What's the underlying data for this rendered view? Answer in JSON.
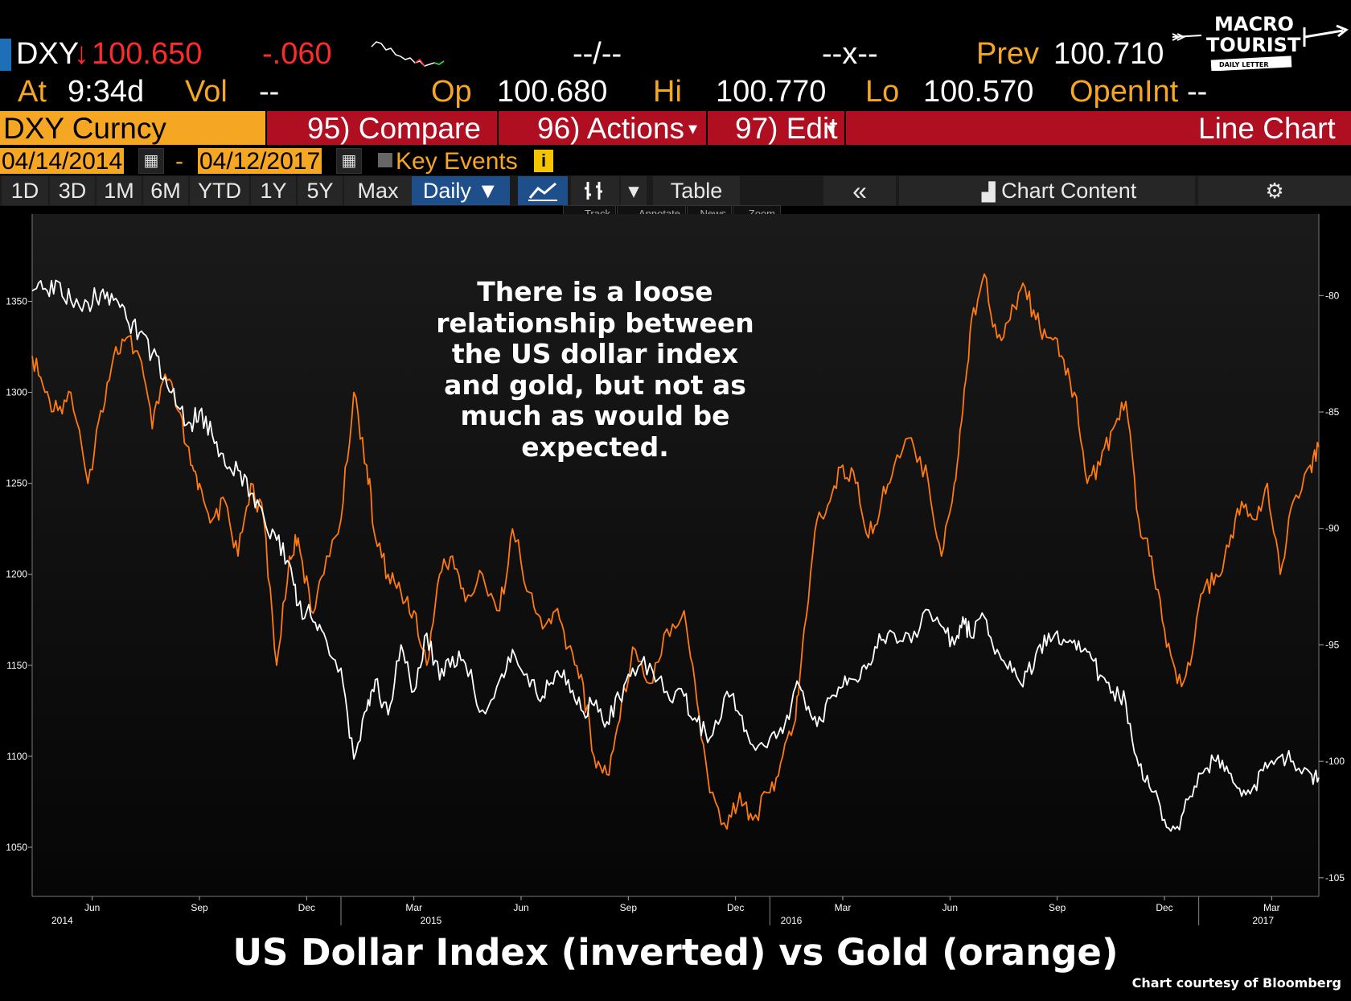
{
  "quote": {
    "ticker": "DXY",
    "direction_arrow": "↓",
    "last": "100.650",
    "change": "-.060",
    "bid_ask": "--/--",
    "size": "--x--",
    "prev_label": "Prev",
    "prev": "100.710",
    "at_label": "At",
    "time": "9:34d",
    "vol_label": "Vol",
    "vol": "--",
    "open_label": "Op",
    "open": "100.680",
    "high_label": "Hi",
    "high": "100.770",
    "low_label": "Lo",
    "low": "100.570",
    "openint_label": "OpenInt",
    "openint": "--"
  },
  "function_bar": {
    "security": "DXY Curncy",
    "compare": "95) Compare",
    "actions": "96) Actions",
    "edit": "97) Edit",
    "chart_type": "Line Chart"
  },
  "date_range": {
    "start": "04/14/2014",
    "dash": "-",
    "end": "04/12/2017",
    "key_events": "Key Events",
    "info_icon": "i"
  },
  "toolbar": {
    "periods": [
      "1D",
      "3D",
      "1M",
      "6M",
      "YTD",
      "1Y",
      "5Y",
      "Max"
    ],
    "frequency": "Daily ▼",
    "table": "Table",
    "collapse": "«",
    "chart_content": "Chart Content",
    "tools": [
      "Track",
      "Annotate",
      "News",
      "Zoom"
    ]
  },
  "logo": {
    "line1": "MACRO",
    "line2": "TOURIST",
    "line3": "DAILY LETTER"
  },
  "annotation": [
    "There is a loose",
    "relationship between",
    "the US dollar index",
    "and gold, but not as",
    "much as would be",
    "expected."
  ],
  "title": "US Dollar Index (inverted) vs Gold (orange)",
  "credit": "Chart courtesy of Bloomberg",
  "colors": {
    "gold": "#ff7a10",
    "dxy": "#ffffff",
    "amber": "#f5a623",
    "bar_red": "#b00f22"
  },
  "chart_data": {
    "type": "line",
    "title": "US Dollar Index (inverted) vs Gold (orange)",
    "x_axis": {
      "month_ticks": [
        "Jun",
        "Sep",
        "Dec",
        "Mar",
        "Jun",
        "Sep",
        "Dec",
        "Mar",
        "Jun",
        "Sep",
        "Dec",
        "Mar"
      ],
      "month_tick_pos": [
        2014.42,
        2014.67,
        2014.92,
        2015.17,
        2015.42,
        2015.67,
        2015.92,
        2016.17,
        2016.42,
        2016.67,
        2016.92,
        2017.17
      ],
      "year_ticks": [
        "2014",
        "2015",
        "2016",
        "2017"
      ],
      "year_tick_pos": [
        2014.35,
        2015.21,
        2016.05,
        2017.15
      ],
      "xlim": [
        2014.28,
        2017.28
      ]
    },
    "y_left": {
      "ticks": [
        1050,
        1100,
        1150,
        1200,
        1250,
        1300,
        1350
      ],
      "ylim": [
        1023,
        1398
      ]
    },
    "y_right": {
      "ticks": [
        -80,
        -85,
        -90,
        -95,
        -100,
        -105
      ],
      "ylim": [
        -105.8,
        -76.5
      ]
    },
    "series": [
      {
        "name": "Gold (orange)",
        "axis": "left",
        "x": [
          2014.28,
          2014.31,
          2014.34,
          2014.37,
          2014.41,
          2014.44,
          2014.47,
          2014.5,
          2014.53,
          2014.56,
          2014.59,
          2014.62,
          2014.65,
          2014.67,
          2014.7,
          2014.73,
          2014.76,
          2014.79,
          2014.82,
          2014.85,
          2014.88,
          2014.9,
          2014.93,
          2014.96,
          2015.0,
          2015.03,
          2015.06,
          2015.08,
          2015.11,
          2015.14,
          2015.17,
          2015.2,
          2015.23,
          2015.26,
          2015.29,
          2015.33,
          2015.37,
          2015.4,
          2015.44,
          2015.47,
          2015.5,
          2015.53,
          2015.56,
          2015.59,
          2015.62,
          2015.65,
          2015.68,
          2015.72,
          2015.76,
          2015.8,
          2015.83,
          2015.86,
          2015.9,
          2015.93,
          2015.96,
          2016.0,
          2016.03,
          2016.06,
          2016.08,
          2016.11,
          2016.14,
          2016.17,
          2016.2,
          2016.23,
          2016.26,
          2016.29,
          2016.33,
          2016.37,
          2016.4,
          2016.43,
          2016.45,
          2016.47,
          2016.5,
          2016.53,
          2016.56,
          2016.59,
          2016.62,
          2016.65,
          2016.68,
          2016.71,
          2016.74,
          2016.77,
          2016.8,
          2016.83,
          2016.86,
          2016.89,
          2016.92,
          2016.95,
          2016.98,
          2017.01,
          2017.04,
          2017.07,
          2017.1,
          2017.13,
          2017.16,
          2017.19,
          2017.22,
          2017.26,
          2017.28
        ],
        "values": [
          1320,
          1300,
          1290,
          1300,
          1250,
          1290,
          1320,
          1330,
          1320,
          1280,
          1310,
          1290,
          1260,
          1250,
          1230,
          1240,
          1210,
          1250,
          1230,
          1150,
          1210,
          1220,
          1180,
          1200,
          1230,
          1300,
          1260,
          1220,
          1200,
          1190,
          1180,
          1150,
          1200,
          1210,
          1185,
          1200,
          1180,
          1225,
          1190,
          1170,
          1180,
          1160,
          1145,
          1100,
          1090,
          1120,
          1160,
          1140,
          1170,
          1180,
          1130,
          1080,
          1060,
          1080,
          1065,
          1080,
          1100,
          1120,
          1170,
          1230,
          1240,
          1260,
          1250,
          1220,
          1240,
          1260,
          1275,
          1250,
          1210,
          1250,
          1290,
          1340,
          1365,
          1330,
          1340,
          1360,
          1340,
          1330,
          1320,
          1300,
          1250,
          1260,
          1280,
          1295,
          1230,
          1210,
          1170,
          1140,
          1150,
          1190,
          1200,
          1215,
          1240,
          1230,
          1250,
          1200,
          1240,
          1260,
          1270
        ]
      },
      {
        "name": "US Dollar Index (inverted)",
        "axis": "right",
        "x": [
          2014.28,
          2014.31,
          2014.34,
          2014.37,
          2014.41,
          2014.44,
          2014.47,
          2014.5,
          2014.53,
          2014.56,
          2014.59,
          2014.62,
          2014.65,
          2014.67,
          2014.7,
          2014.73,
          2014.76,
          2014.79,
          2014.82,
          2014.85,
          2014.88,
          2014.9,
          2014.93,
          2014.96,
          2015.0,
          2015.03,
          2015.06,
          2015.08,
          2015.11,
          2015.14,
          2015.17,
          2015.2,
          2015.23,
          2015.26,
          2015.29,
          2015.33,
          2015.37,
          2015.4,
          2015.44,
          2015.47,
          2015.5,
          2015.53,
          2015.56,
          2015.59,
          2015.62,
          2015.65,
          2015.68,
          2015.72,
          2015.76,
          2015.8,
          2015.83,
          2015.86,
          2015.9,
          2015.93,
          2015.96,
          2016.0,
          2016.03,
          2016.06,
          2016.08,
          2016.11,
          2016.14,
          2016.17,
          2016.2,
          2016.23,
          2016.26,
          2016.29,
          2016.33,
          2016.37,
          2016.4,
          2016.43,
          2016.45,
          2016.47,
          2016.5,
          2016.53,
          2016.56,
          2016.59,
          2016.62,
          2016.65,
          2016.68,
          2016.71,
          2016.74,
          2016.77,
          2016.8,
          2016.83,
          2016.86,
          2016.89,
          2016.92,
          2016.95,
          2016.98,
          2017.01,
          2017.04,
          2017.07,
          2017.1,
          2017.13,
          2017.16,
          2017.19,
          2017.22,
          2017.26,
          2017.28
        ],
        "values": [
          -79.8,
          -79.7,
          -79.4,
          -80.2,
          -80.3,
          -79.9,
          -80.2,
          -81,
          -81.6,
          -82.5,
          -83.5,
          -84.8,
          -85.5,
          -85,
          -86,
          -87.3,
          -87.5,
          -88.5,
          -89.5,
          -90.5,
          -91.5,
          -93.3,
          -93.8,
          -94.5,
          -96,
          -99.9,
          -97.8,
          -96.5,
          -98,
          -95,
          -97,
          -94.5,
          -96.5,
          -95.5,
          -95.8,
          -97.8,
          -96.5,
          -95.2,
          -96.8,
          -97.2,
          -96.2,
          -96.5,
          -97.8,
          -97.6,
          -98.3,
          -97.3,
          -96,
          -95.8,
          -97,
          -97.2,
          -98.3,
          -99,
          -97,
          -98,
          -99.3,
          -99,
          -98.8,
          -96.8,
          -97.3,
          -98.5,
          -97.3,
          -96.8,
          -96.5,
          -95.8,
          -94.8,
          -94.5,
          -94.9,
          -93.5,
          -94.2,
          -95,
          -93.8,
          -94.7,
          -93.8,
          -95.2,
          -95.7,
          -96.8,
          -95.4,
          -94.5,
          -95,
          -94.8,
          -95.3,
          -96.3,
          -97,
          -97.5,
          -100.2,
          -101.3,
          -102.5,
          -102.8,
          -101.5,
          -100.5,
          -100,
          -100.5,
          -101.5,
          -101,
          -100.3,
          -99.8,
          -100,
          -100.5,
          -100.7
        ]
      }
    ]
  }
}
